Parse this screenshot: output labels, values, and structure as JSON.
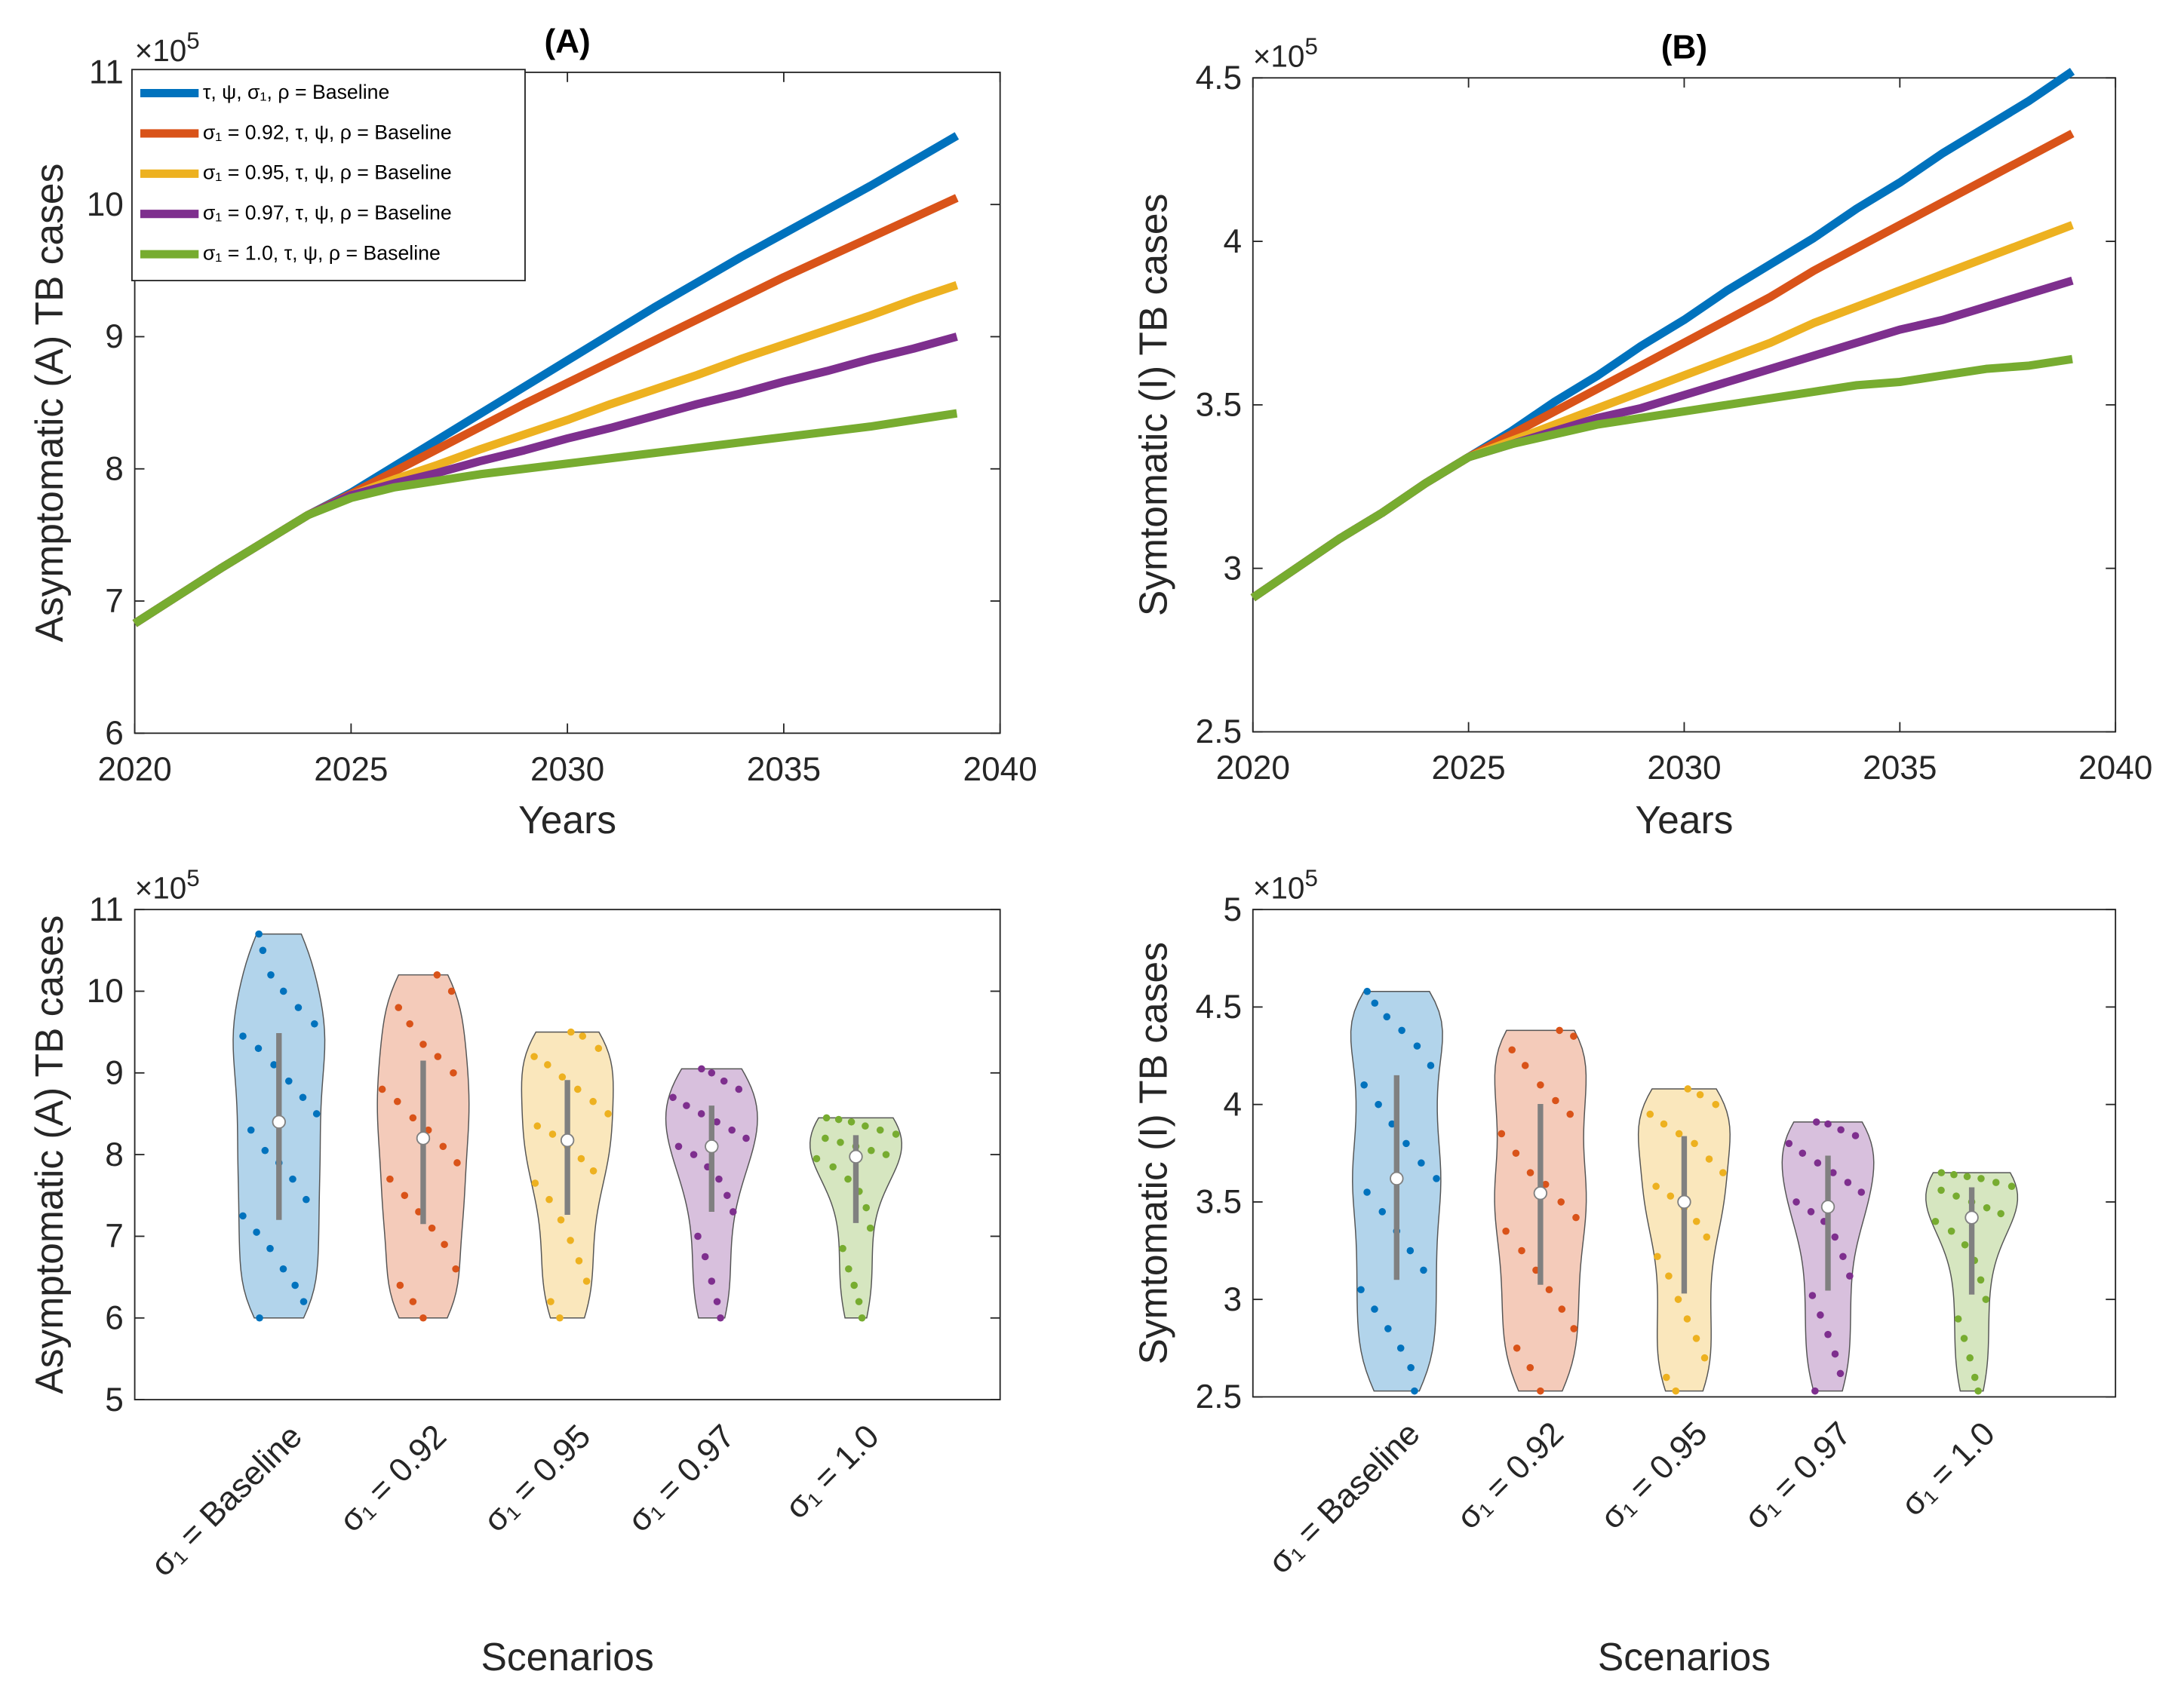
{
  "colors": [
    "#0072BD",
    "#D95319",
    "#EDB120",
    "#7E2F8E",
    "#77AC30"
  ],
  "chart_data": [
    {
      "type": "line",
      "title": "(A)",
      "xlabel": "Years",
      "ylabel": "Asymptomatic (A) TB cases",
      "y_multiplier": "×10",
      "y_exponent": "5",
      "xlim": [
        2020,
        2040
      ],
      "ylim": [
        6,
        11
      ],
      "xticks": [
        "2020",
        "2025",
        "2030",
        "2035",
        "2040"
      ],
      "yticks": [
        "6",
        "7",
        "8",
        "9",
        "10",
        "11"
      ],
      "legend_position": "top-left",
      "x": [
        2020,
        2021,
        2022,
        2023,
        2024,
        2025,
        2026,
        2027,
        2028,
        2029,
        2030,
        2031,
        2032,
        2033,
        2034,
        2035,
        2036,
        2037,
        2038,
        2039
      ],
      "series": [
        {
          "name": "τ, ψ,  σ₁, ρ = Baseline",
          "values": [
            6.83,
            7.04,
            7.25,
            7.45,
            7.65,
            7.82,
            8.02,
            8.22,
            8.42,
            8.62,
            8.82,
            9.02,
            9.22,
            9.41,
            9.6,
            9.78,
            9.96,
            10.14,
            10.33,
            10.52
          ]
        },
        {
          "name": "σ₁ = 0.92, τ, ψ, ρ = Baseline",
          "values": [
            6.83,
            7.04,
            7.25,
            7.45,
            7.65,
            7.81,
            7.98,
            8.15,
            8.32,
            8.49,
            8.65,
            8.81,
            8.97,
            9.13,
            9.29,
            9.45,
            9.6,
            9.75,
            9.9,
            10.05
          ]
        },
        {
          "name": "σ₁ = 0.95,  τ, ψ, ρ = Baseline",
          "values": [
            6.83,
            7.04,
            7.25,
            7.45,
            7.65,
            7.8,
            7.92,
            8.03,
            8.15,
            8.26,
            8.37,
            8.49,
            8.6,
            8.71,
            8.83,
            8.94,
            9.05,
            9.16,
            9.28,
            9.39
          ]
        },
        {
          "name": "σ₁ = 0.97,   τ, ψ, ρ = Baseline",
          "values": [
            6.83,
            7.04,
            7.25,
            7.45,
            7.65,
            7.8,
            7.89,
            7.97,
            8.06,
            8.14,
            8.23,
            8.31,
            8.4,
            8.49,
            8.57,
            8.66,
            8.74,
            8.83,
            8.91,
            9.0
          ]
        },
        {
          "name": "σ₁ = 1.0,  τ, ψ, ρ = Baseline",
          "values": [
            6.83,
            7.04,
            7.25,
            7.45,
            7.65,
            7.78,
            7.86,
            7.91,
            7.96,
            8.0,
            8.04,
            8.08,
            8.12,
            8.16,
            8.2,
            8.24,
            8.28,
            8.32,
            8.37,
            8.42
          ]
        }
      ]
    },
    {
      "type": "line",
      "title": "(B)",
      "xlabel": "Years",
      "ylabel": "Symtomatic (I) TB cases",
      "y_multiplier": "×10",
      "y_exponent": "5",
      "xlim": [
        2020,
        2040
      ],
      "ylim": [
        2.5,
        4.5
      ],
      "xticks": [
        "2020",
        "2025",
        "2030",
        "2035",
        "2040"
      ],
      "yticks": [
        "2.5",
        "3",
        "3.5",
        "4",
        "4.5"
      ],
      "x": [
        2020,
        2021,
        2022,
        2023,
        2024,
        2025,
        2026,
        2027,
        2028,
        2029,
        2030,
        2031,
        2032,
        2033,
        2034,
        2035,
        2036,
        2037,
        2038,
        2039
      ],
      "series": [
        {
          "values": [
            2.91,
            3.0,
            3.09,
            3.17,
            3.26,
            3.34,
            3.42,
            3.51,
            3.59,
            3.68,
            3.76,
            3.85,
            3.93,
            4.01,
            4.1,
            4.18,
            4.27,
            4.35,
            4.43,
            4.52
          ]
        },
        {
          "values": [
            2.91,
            3.0,
            3.09,
            3.17,
            3.26,
            3.34,
            3.41,
            3.48,
            3.55,
            3.62,
            3.69,
            3.76,
            3.83,
            3.91,
            3.98,
            4.05,
            4.12,
            4.19,
            4.26,
            4.33
          ]
        },
        {
          "values": [
            2.91,
            3.0,
            3.09,
            3.17,
            3.26,
            3.34,
            3.39,
            3.44,
            3.49,
            3.54,
            3.59,
            3.64,
            3.69,
            3.75,
            3.8,
            3.85,
            3.9,
            3.95,
            4.0,
            4.05
          ]
        },
        {
          "values": [
            2.91,
            3.0,
            3.09,
            3.17,
            3.26,
            3.34,
            3.38,
            3.42,
            3.46,
            3.49,
            3.53,
            3.57,
            3.61,
            3.65,
            3.69,
            3.73,
            3.76,
            3.8,
            3.84,
            3.88
          ]
        },
        {
          "values": [
            2.91,
            3.0,
            3.09,
            3.17,
            3.26,
            3.34,
            3.38,
            3.41,
            3.44,
            3.46,
            3.48,
            3.5,
            3.52,
            3.54,
            3.56,
            3.57,
            3.59,
            3.61,
            3.62,
            3.64
          ]
        }
      ]
    },
    {
      "type": "violin",
      "xlabel": "Scenarios",
      "ylabel": "Asymptomatic (A) TB cases",
      "y_multiplier": "×10",
      "y_exponent": "5",
      "ylim": [
        5,
        11
      ],
      "yticks": [
        "5",
        "6",
        "7",
        "8",
        "9",
        "10",
        "11"
      ],
      "categories": [
        "σ₁ = Baseline",
        "σ₁ = 0.92",
        "σ₁ = 0.95",
        "σ₁ = 0.97",
        "σ₁ = 1.0"
      ],
      "groups": [
        [
          10.7,
          10.5,
          10.2,
          10.0,
          9.8,
          9.6,
          9.45,
          9.3,
          9.1,
          8.9,
          8.7,
          8.5,
          8.3,
          8.05,
          7.9,
          7.7,
          7.45,
          7.25,
          7.05,
          6.85,
          6.6,
          6.4,
          6.2,
          6.0
        ],
        [
          10.2,
          10.0,
          9.8,
          9.6,
          9.35,
          9.2,
          9.0,
          8.8,
          8.65,
          8.45,
          8.3,
          8.1,
          7.9,
          7.7,
          7.5,
          7.3,
          7.1,
          6.9,
          6.6,
          6.4,
          6.2,
          6.0
        ],
        [
          9.5,
          9.45,
          9.3,
          9.2,
          9.1,
          8.95,
          8.8,
          8.65,
          8.5,
          8.35,
          8.25,
          8.1,
          7.95,
          7.8,
          7.65,
          7.45,
          7.2,
          6.95,
          6.7,
          6.45,
          6.2,
          6.0
        ],
        [
          9.05,
          9.0,
          8.9,
          8.8,
          8.7,
          8.6,
          8.5,
          8.4,
          8.3,
          8.2,
          8.1,
          8.0,
          7.85,
          7.7,
          7.5,
          7.3,
          7.0,
          6.75,
          6.45,
          6.2,
          6.0
        ],
        [
          8.45,
          8.43,
          8.4,
          8.35,
          8.3,
          8.25,
          8.2,
          8.15,
          8.1,
          8.05,
          8.0,
          7.95,
          7.85,
          7.7,
          7.55,
          7.35,
          7.1,
          6.85,
          6.6,
          6.4,
          6.2,
          6.0
        ]
      ]
    },
    {
      "type": "violin",
      "xlabel": "Scenarios",
      "ylabel": "Symtomatic (I) TB cases",
      "y_multiplier": "×10",
      "y_exponent": "5",
      "ylim": [
        2.5,
        5
      ],
      "yticks": [
        "2.5",
        "3",
        "3.5",
        "4",
        "4.5",
        "5"
      ],
      "categories": [
        "σ₁ = Baseline",
        "σ₁ = 0.92",
        "σ₁ = 0.95",
        "σ₁ = 0.97",
        "σ₁ = 1.0"
      ],
      "groups": [
        [
          4.58,
          4.52,
          4.45,
          4.38,
          4.3,
          4.2,
          4.1,
          4.0,
          3.9,
          3.8,
          3.7,
          3.62,
          3.55,
          3.45,
          3.35,
          3.25,
          3.15,
          3.05,
          2.95,
          2.85,
          2.75,
          2.65,
          2.53
        ],
        [
          4.38,
          4.35,
          4.28,
          4.2,
          4.1,
          4.02,
          3.95,
          3.85,
          3.75,
          3.65,
          3.59,
          3.5,
          3.42,
          3.35,
          3.25,
          3.15,
          3.05,
          2.95,
          2.85,
          2.75,
          2.65,
          2.53
        ],
        [
          4.08,
          4.05,
          4.0,
          3.95,
          3.9,
          3.85,
          3.8,
          3.72,
          3.65,
          3.58,
          3.53,
          3.47,
          3.4,
          3.32,
          3.22,
          3.12,
          3.0,
          2.9,
          2.8,
          2.7,
          2.6,
          2.53
        ],
        [
          3.91,
          3.9,
          3.87,
          3.84,
          3.8,
          3.75,
          3.7,
          3.65,
          3.6,
          3.55,
          3.5,
          3.45,
          3.4,
          3.32,
          3.22,
          3.12,
          3.02,
          2.92,
          2.82,
          2.72,
          2.62,
          2.53
        ],
        [
          3.65,
          3.64,
          3.63,
          3.62,
          3.6,
          3.58,
          3.56,
          3.53,
          3.5,
          3.47,
          3.44,
          3.4,
          3.35,
          3.28,
          3.2,
          3.1,
          3.0,
          2.9,
          2.8,
          2.7,
          2.6,
          2.53
        ]
      ]
    }
  ]
}
